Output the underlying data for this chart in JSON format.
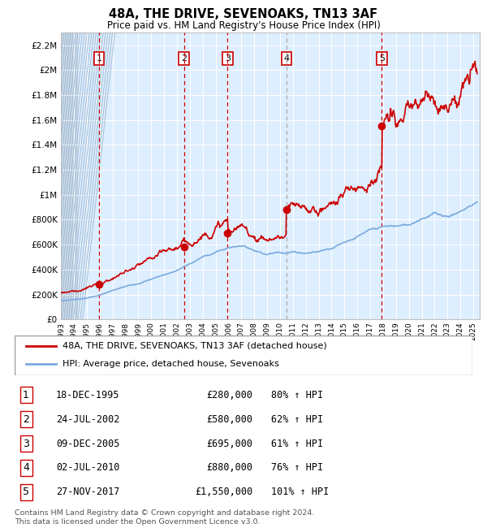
{
  "title": "48A, THE DRIVE, SEVENOAKS, TN13 3AF",
  "subtitle": "Price paid vs. HM Land Registry's House Price Index (HPI)",
  "footer": "Contains HM Land Registry data © Crown copyright and database right 2024.\nThis data is licensed under the Open Government Licence v3.0.",
  "legend_entry1": "48A, THE DRIVE, SEVENOAKS, TN13 3AF (detached house)",
  "legend_entry2": "HPI: Average price, detached house, Sevenoaks",
  "transactions": [
    {
      "num": 1,
      "date": "18-DEC-1995",
      "price": 280000,
      "pct": "80% ↑ HPI",
      "year": 1995.96,
      "vline_color": "#cc0000",
      "vline_style": "--"
    },
    {
      "num": 2,
      "date": "24-JUL-2002",
      "price": 580000,
      "pct": "62% ↑ HPI",
      "year": 2002.56,
      "vline_color": "#cc0000",
      "vline_style": "--"
    },
    {
      "num": 3,
      "date": "09-DEC-2005",
      "price": 695000,
      "pct": "61% ↑ HPI",
      "year": 2005.94,
      "vline_color": "#cc0000",
      "vline_style": "--"
    },
    {
      "num": 4,
      "date": "02-JUL-2010",
      "price": 880000,
      "pct": "76% ↑ HPI",
      "year": 2010.5,
      "vline_color": "#aaaaaa",
      "vline_style": "--"
    },
    {
      "num": 5,
      "date": "27-NOV-2017",
      "price": 1550000,
      "pct": "101% ↑ HPI",
      "year": 2017.91,
      "vline_color": "#cc0000",
      "vline_style": "--"
    }
  ],
  "hpi_color": "#7aaadd",
  "property_color": "#cc0000",
  "background_chart": "#ddeeff",
  "grid_color": "#ffffff",
  "yticks": [
    0,
    200000,
    400000,
    600000,
    800000,
    1000000,
    1200000,
    1400000,
    1600000,
    1800000,
    2000000,
    2200000
  ],
  "ylabels": [
    "£0",
    "£200K",
    "£400K",
    "£600K",
    "£800K",
    "£1M",
    "£1.2M",
    "£1.4M",
    "£1.6M",
    "£1.8M",
    "£2M",
    "£2.2M"
  ],
  "ymax": 2300000,
  "xmin": 1993.0,
  "xmax": 2025.5,
  "hatch_xend": 1994.3
}
